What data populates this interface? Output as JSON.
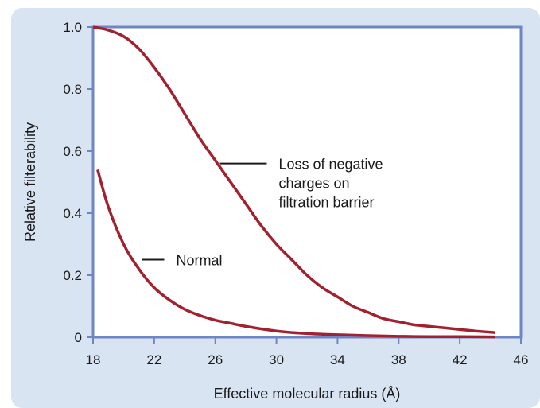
{
  "chart_data": {
    "type": "line",
    "xlabel": "Effective molecular radius (Å)",
    "ylabel": "Relative filterability",
    "xlim": [
      18,
      46
    ],
    "ylim": [
      0,
      1.0
    ],
    "x_ticks": [
      18,
      22,
      26,
      30,
      34,
      38,
      42,
      46
    ],
    "x_tick_labels": [
      "18",
      "22",
      "26",
      "30",
      "34",
      "38",
      "42",
      "46"
    ],
    "y_ticks": [
      0,
      0.2,
      0.4,
      0.6,
      0.8,
      1.0
    ],
    "y_tick_labels": [
      "0",
      "0.2",
      "0.4",
      "0.6",
      "0.8",
      "1.0"
    ],
    "grid": false,
    "colors": {
      "line": "#a3202e",
      "axes": "#6f86c4",
      "plot_bg": "#ffffff",
      "frame_bg": "#d9e4f2"
    },
    "series": [
      {
        "x": [
          18,
          19,
          20,
          21,
          22,
          23,
          24,
          25,
          26,
          27,
          28,
          29,
          30,
          31,
          32,
          33,
          34,
          35,
          36,
          37,
          38,
          39,
          40,
          41,
          42,
          43,
          44.3
        ],
        "y": [
          1.0,
          0.99,
          0.97,
          0.93,
          0.87,
          0.8,
          0.72,
          0.64,
          0.57,
          0.5,
          0.43,
          0.36,
          0.3,
          0.25,
          0.2,
          0.16,
          0.13,
          0.1,
          0.08,
          0.06,
          0.05,
          0.04,
          0.035,
          0.03,
          0.025,
          0.02,
          0.015
        ]
      },
      {
        "x": [
          18.3,
          19,
          20,
          21,
          22,
          23,
          24,
          25,
          26,
          27,
          28,
          30,
          32,
          34,
          36,
          38,
          40,
          42,
          44.3
        ],
        "y": [
          0.54,
          0.42,
          0.3,
          0.22,
          0.16,
          0.12,
          0.09,
          0.07,
          0.055,
          0.045,
          0.035,
          0.02,
          0.012,
          0.008,
          0.005,
          0.003,
          0.002,
          0.002,
          0.001
        ]
      }
    ],
    "annotations": [
      {
        "lines": [
          "Loss of negative",
          "charges on",
          "filtration barrier"
        ],
        "leader_point": [
          26.3,
          0.56
        ]
      },
      {
        "lines": [
          "Normal"
        ],
        "leader_point": [
          21.2,
          0.25
        ]
      }
    ]
  }
}
